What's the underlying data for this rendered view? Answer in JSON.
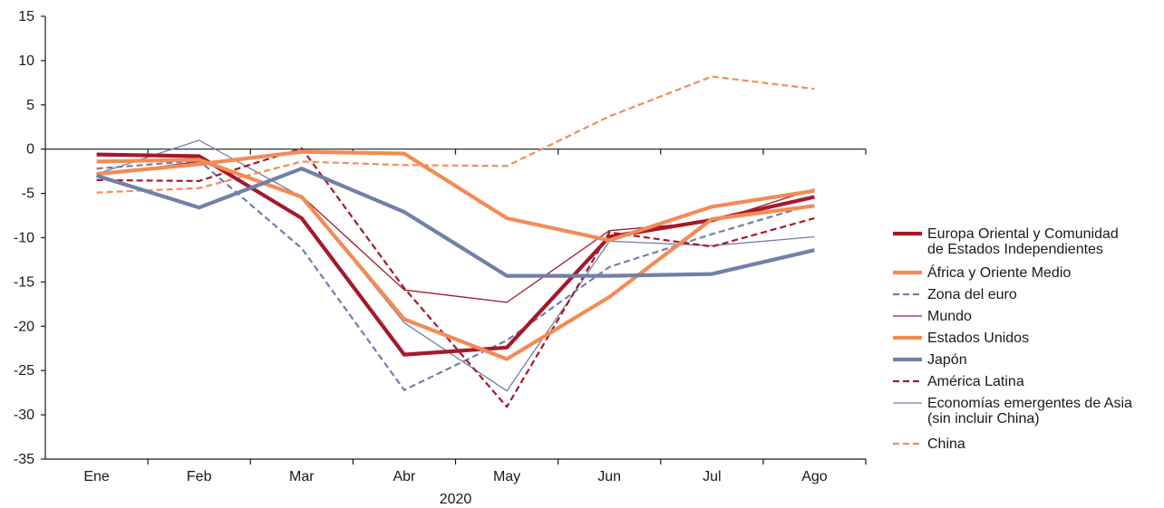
{
  "chart_data": {
    "type": "line",
    "title": "",
    "xlabel": "2020",
    "ylabel": "",
    "categories": [
      "Ene",
      "Feb",
      "Mar",
      "Abr",
      "May",
      "Jun",
      "Jul",
      "Ago"
    ],
    "ylim": [
      -35,
      15
    ],
    "yticks": [
      15,
      10,
      5,
      0,
      -5,
      -10,
      -15,
      -20,
      -25,
      -30,
      -35
    ],
    "legend_position": "right",
    "grid": false,
    "series": [
      {
        "name": [
          "Europa Oriental y Comunidad",
          "de Estados Independientes"
        ],
        "values": [
          -0.6,
          -0.8,
          -7.8,
          -23.2,
          -22.4,
          -9.9,
          -8.0,
          -5.4
        ],
        "color": "#a5192a",
        "style": "solid",
        "weight": "thick"
      },
      {
        "name": [
          "África y Oriente Medio"
        ],
        "values": [
          -2.8,
          -1.7,
          -0.3,
          -0.5,
          -7.8,
          -10.3,
          -6.5,
          -4.7
        ],
        "color": "#f28c55",
        "style": "solid",
        "weight": "thick"
      },
      {
        "name": [
          "Zona del euro"
        ],
        "values": [
          -2.2,
          -1.3,
          -11.2,
          -27.2,
          -21.6,
          -13.3,
          -9.6,
          -6.2
        ],
        "color": "#7080a8",
        "style": "dashed",
        "weight": "medium"
      },
      {
        "name": [
          "Mundo"
        ],
        "values": [
          -2.9,
          -1.4,
          -5.3,
          -15.9,
          -17.3,
          -9.2,
          -8.2,
          -4.5
        ],
        "color": "#a5192a",
        "style": "solid",
        "weight": "thin"
      },
      {
        "name": [
          "Estados Unidos"
        ],
        "values": [
          -1.4,
          -1.2,
          -5.4,
          -19.2,
          -23.7,
          -16.7,
          -7.9,
          -6.4
        ],
        "color": "#f28c55",
        "style": "solid",
        "weight": "thick"
      },
      {
        "name": [
          "Japón"
        ],
        "values": [
          -3.0,
          -6.6,
          -2.2,
          -7.1,
          -14.3,
          -14.3,
          -14.1,
          -11.4
        ],
        "color": "#7080a8",
        "style": "solid",
        "weight": "thick"
      },
      {
        "name": [
          "América Latina"
        ],
        "values": [
          -3.5,
          -3.6,
          0.1,
          -15.7,
          -29.1,
          -9.4,
          -11.0,
          -7.8
        ],
        "color": "#a5192a",
        "style": "dashed",
        "weight": "medium"
      },
      {
        "name": [
          "Economías emergentes de Asia",
          "(sin incluir China)"
        ],
        "values": [
          -2.8,
          1.0,
          -5.4,
          -19.6,
          -27.3,
          -10.4,
          -10.9,
          -9.9
        ],
        "color": "#7080a8",
        "style": "solid",
        "weight": "thin"
      },
      {
        "name": [
          "China"
        ],
        "values": [
          -4.9,
          -4.4,
          -1.4,
          -1.8,
          -1.9,
          3.7,
          8.2,
          6.8
        ],
        "color": "#f28c55",
        "style": "dashed",
        "weight": "medium"
      }
    ]
  }
}
